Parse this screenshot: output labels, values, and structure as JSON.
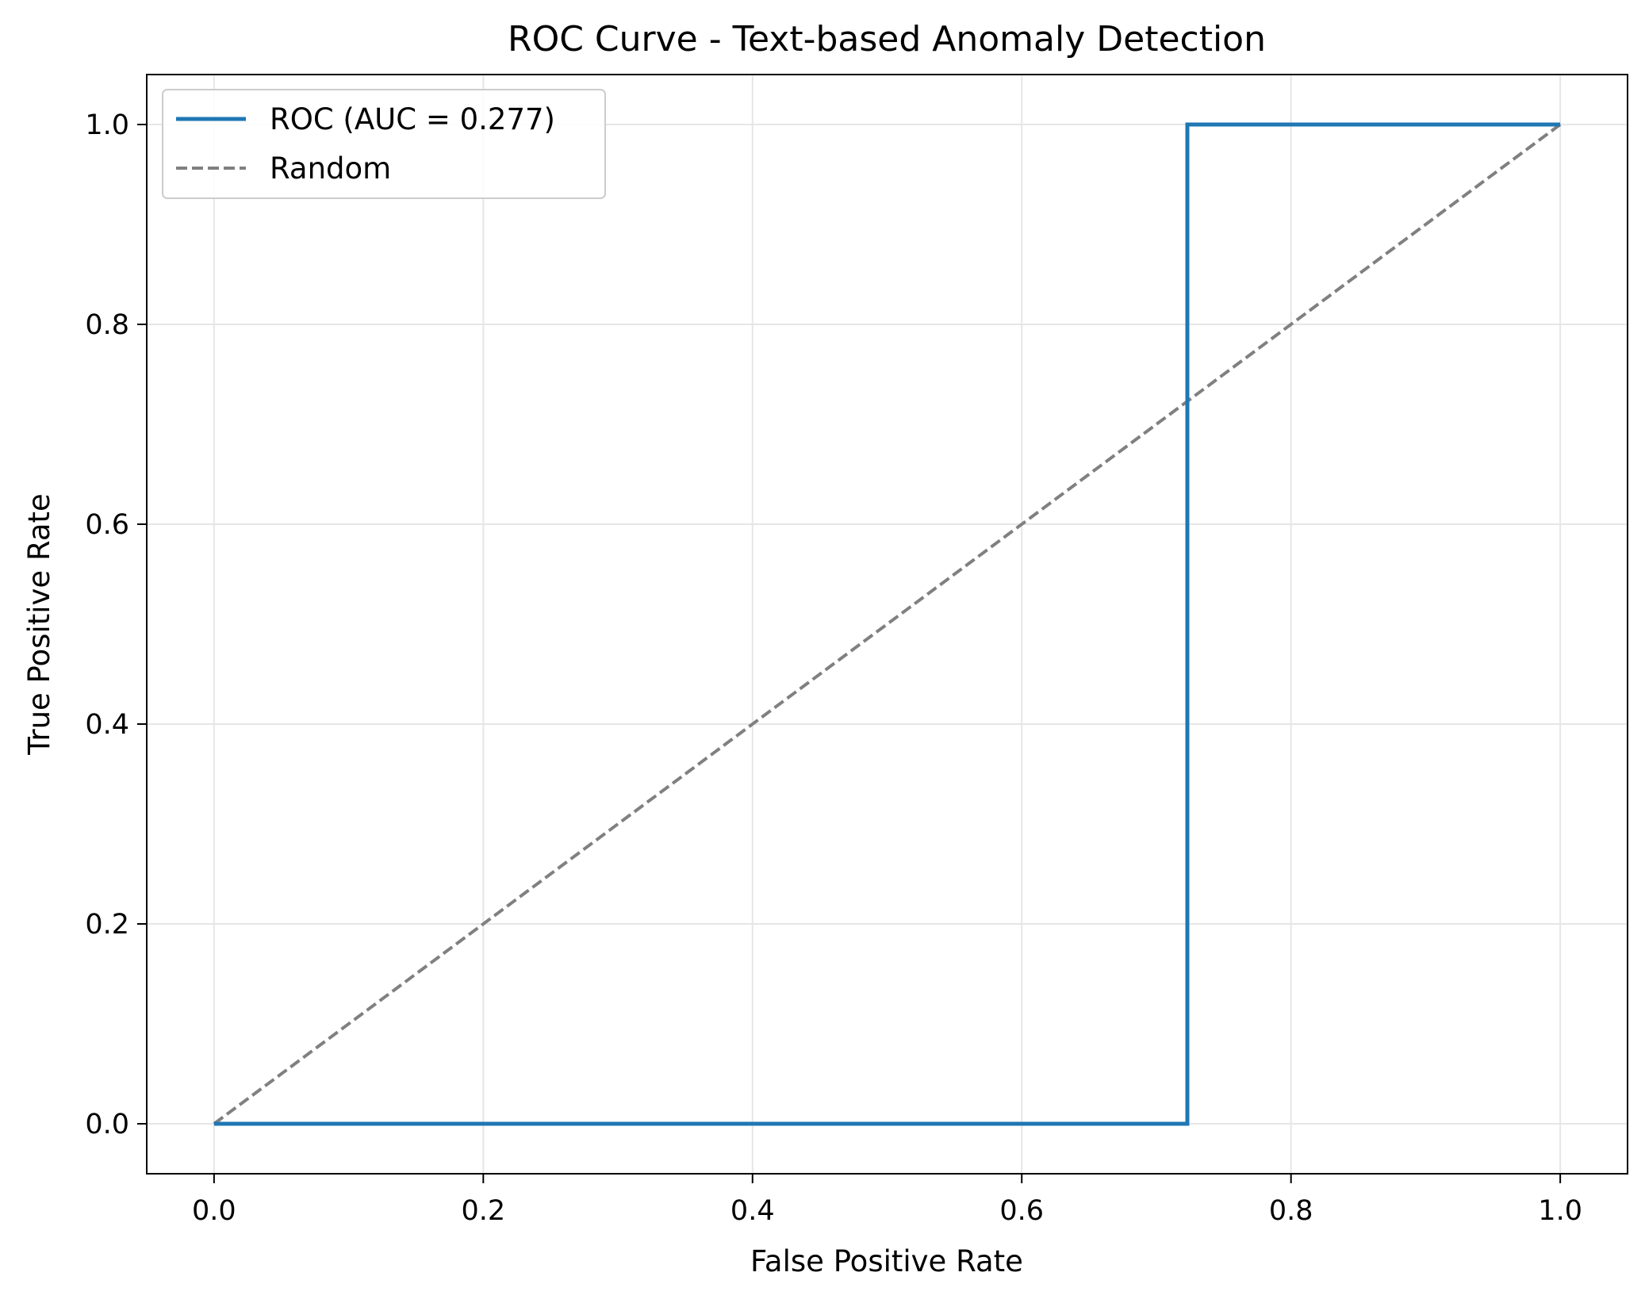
{
  "chart_data": {
    "type": "line",
    "title": "ROC Curve - Text-based Anomaly Detection",
    "xlabel": "False Positive Rate",
    "ylabel": "True Positive Rate",
    "xlim": [
      -0.05,
      1.05
    ],
    "ylim": [
      -0.05,
      1.05
    ],
    "xticks": [
      0.0,
      0.2,
      0.4,
      0.6,
      0.8,
      1.0
    ],
    "yticks": [
      0.0,
      0.2,
      0.4,
      0.6,
      0.8,
      1.0
    ],
    "xtick_labels": [
      "0.0",
      "0.2",
      "0.4",
      "0.6",
      "0.8",
      "1.0"
    ],
    "ytick_labels": [
      "0.0",
      "0.2",
      "0.4",
      "0.6",
      "0.8",
      "1.0"
    ],
    "grid": true,
    "legend_position": "top-left",
    "series": [
      {
        "name": "ROC (AUC = 0.277)",
        "style": "solid",
        "color": "#1f77b4",
        "x": [
          0.0,
          0.723,
          0.723,
          1.0
        ],
        "y": [
          0.0,
          0.0,
          1.0,
          1.0
        ]
      },
      {
        "name": "Random",
        "style": "dashed",
        "color": "#808080",
        "x": [
          0.0,
          1.0
        ],
        "y": [
          0.0,
          1.0
        ]
      }
    ]
  }
}
